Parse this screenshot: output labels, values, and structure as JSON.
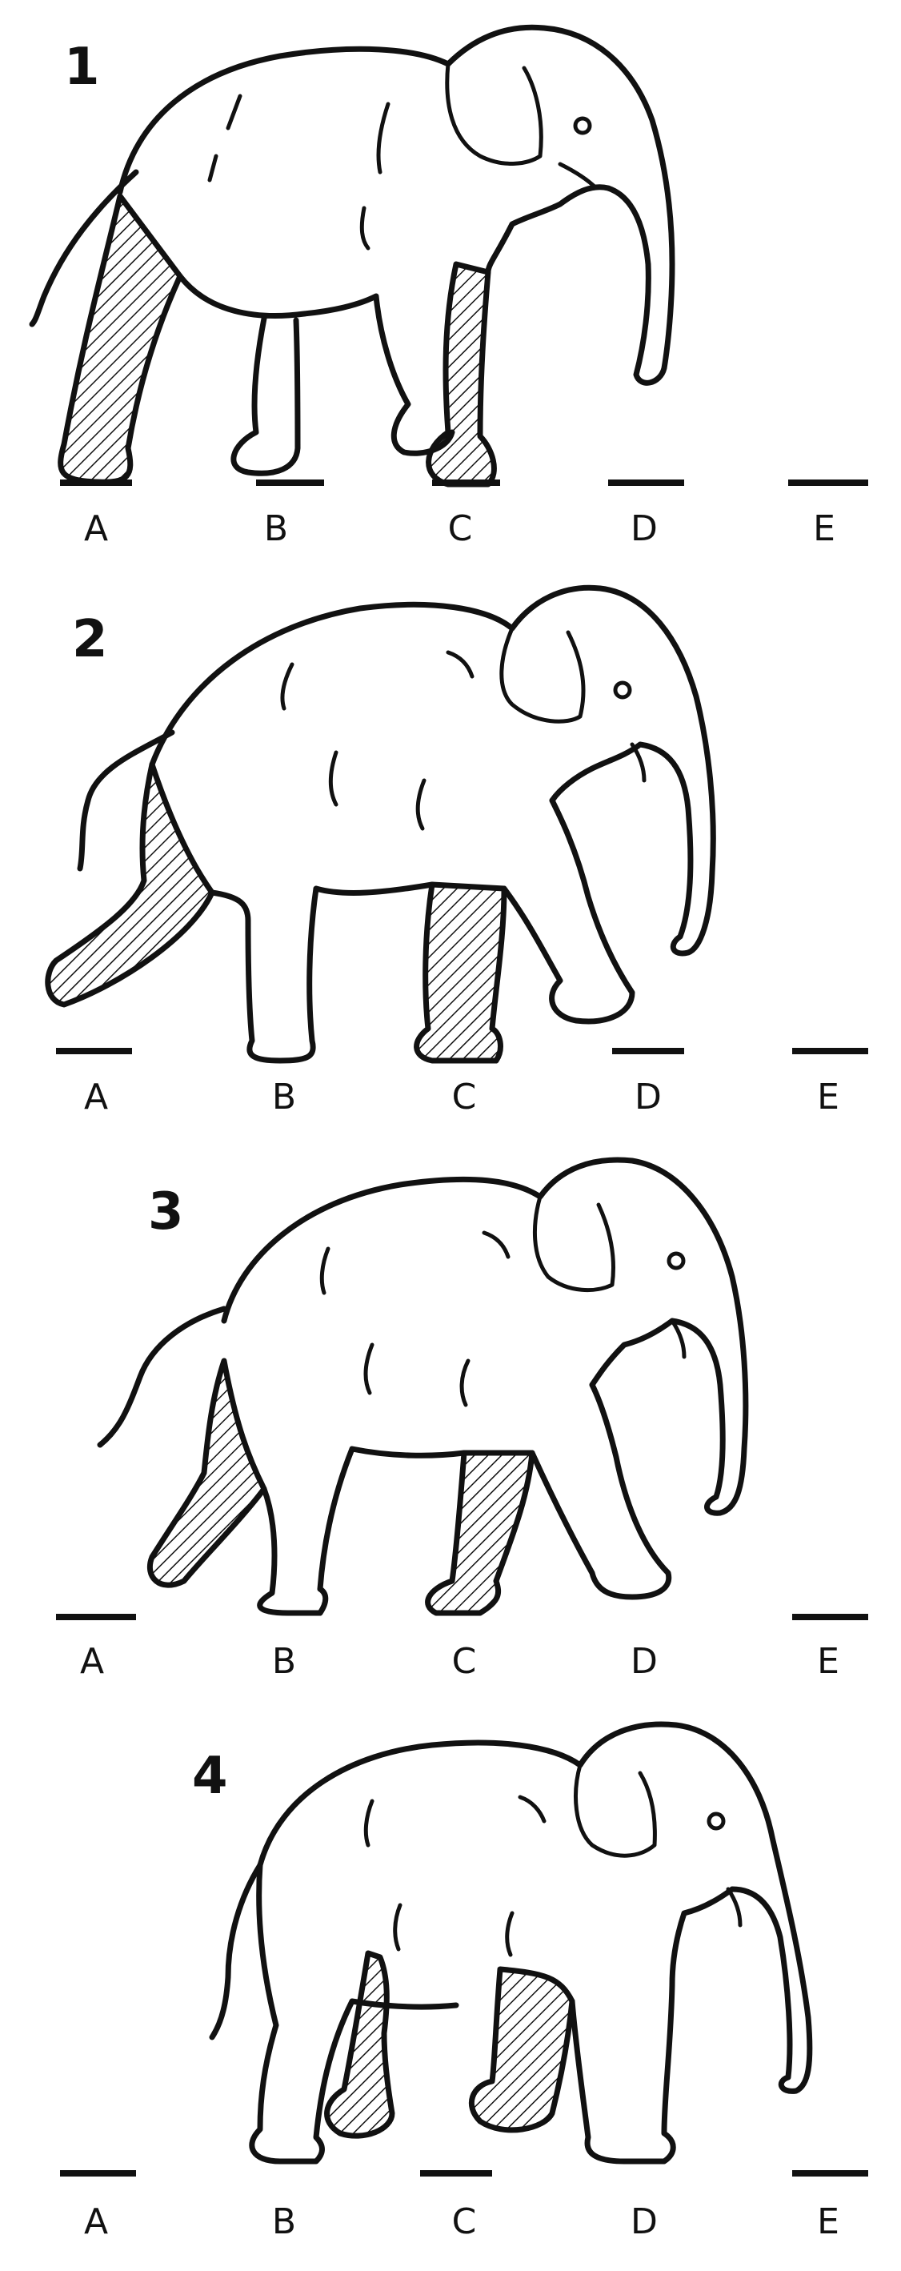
{
  "frames": [
    {
      "number": "1",
      "positions": [
        "A",
        "B",
        "C",
        "D",
        "E"
      ],
      "highlighted_legs": [
        "hind-left",
        "fore-left"
      ]
    },
    {
      "number": "2",
      "positions": [
        "A",
        "B",
        "C",
        "D",
        "E"
      ],
      "highlighted_legs": [
        "hind-left",
        "fore-left"
      ]
    },
    {
      "number": "3",
      "positions": [
        "A",
        "B",
        "C",
        "D",
        "E"
      ],
      "highlighted_legs": [
        "hind-left",
        "fore-left"
      ]
    },
    {
      "number": "4",
      "positions": [
        "A",
        "B",
        "C",
        "D",
        "E"
      ],
      "highlighted_legs": [
        "hind-left",
        "fore-left"
      ]
    }
  ],
  "style": {
    "ink_color": "#111111",
    "background_color": "#ffffff",
    "highlight_fill": "diagonal hatching"
  }
}
